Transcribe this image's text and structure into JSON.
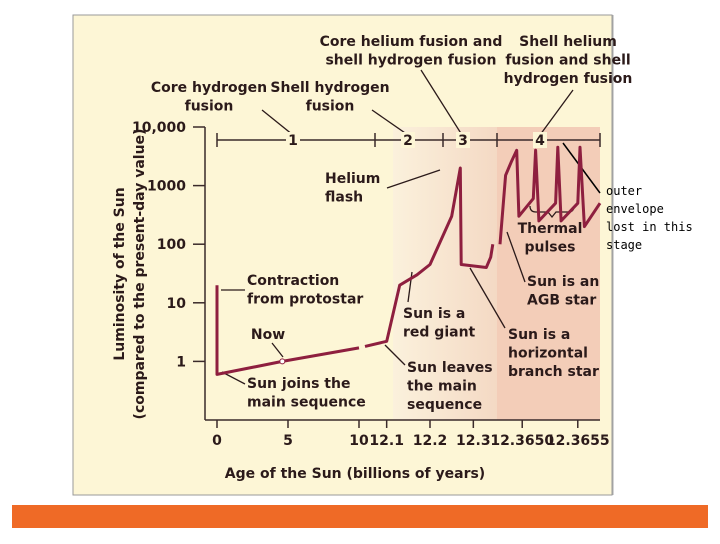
{
  "chart_data": {
    "type": "line",
    "log_y": true,
    "color": "#8e1f3f",
    "x_label": "Age of the Sun (billions of years)",
    "y_label": [
      "Luminosity of the Sun",
      "(compared to the present-day value)"
    ],
    "ylim": [
      0.1,
      10000
    ],
    "yticks": [
      1,
      10,
      100,
      1000,
      {
        "value": 10000,
        "label": "10,000"
      }
    ],
    "x_segments": [
      {
        "xlim": [
          0,
          10
        ],
        "xticks": [
          0,
          5,
          10
        ]
      },
      {
        "xlim": [
          12.05,
          12.35
        ],
        "xticks": [
          12.1,
          12.2,
          12.3
        ]
      },
      {
        "xlim": [
          12.3648,
          12.3657
        ],
        "xticks": [
          {
            "value": 12.365,
            "label": "12.3650"
          },
          {
            "value": 12.3655,
            "label": "12.3655"
          }
        ]
      }
    ],
    "x": [
      0,
      0,
      4.6,
      10,
      null,
      12.05,
      12.1,
      12.13,
      12.17,
      12.2,
      12.25,
      12.27,
      12.272,
      12.33,
      12.34,
      12.345,
      null,
      12.3648,
      12.36485,
      12.3649,
      12.36495,
      12.36497,
      12.3651,
      12.36512,
      12.36515,
      12.3653,
      12.36532,
      12.36535,
      12.3655,
      12.36552,
      12.36556,
      12.3657
    ],
    "values": [
      20,
      0.6,
      1,
      1.7,
      null,
      1.8,
      2.2,
      20,
      30,
      45,
      300,
      2000,
      45,
      40,
      60,
      100,
      null,
      100,
      1500,
      2500,
      4000,
      300,
      600,
      4000,
      250,
      500,
      4500,
      250,
      500,
      4500,
      200,
      500
    ],
    "phases": [
      "1",
      "2",
      "3",
      "4"
    ],
    "annotations": [
      {
        "lines": [
          "Core helium fusion and",
          "shell hydrogen fusion"
        ]
      },
      {
        "lines": [
          "Shell helium",
          "fusion and shell",
          "hydrogen fusion"
        ]
      },
      {
        "lines": [
          "Core hydrogen",
          "fusion"
        ]
      },
      {
        "lines": [
          "Shell hydrogen",
          "fusion"
        ]
      },
      {
        "lines": [
          "Helium",
          "flash"
        ]
      },
      {
        "lines": [
          "Thermal",
          "pulses"
        ]
      },
      {
        "lines": [
          "Contraction",
          "from protostar"
        ]
      },
      {
        "lines": [
          "Now"
        ]
      },
      {
        "lines": [
          "Sun is a",
          "red giant"
        ]
      },
      {
        "lines": [
          "Sun is an",
          "AGB star"
        ]
      },
      {
        "lines": [
          "Sun is a",
          "horizontal",
          "branch star"
        ]
      },
      {
        "lines": [
          "Sun joins the",
          "main sequence"
        ]
      },
      {
        "lines": [
          "Sun leaves",
          "the main",
          "sequence"
        ]
      }
    ],
    "note": [
      "outer",
      "envelope",
      "lost in this",
      "stage"
    ]
  }
}
